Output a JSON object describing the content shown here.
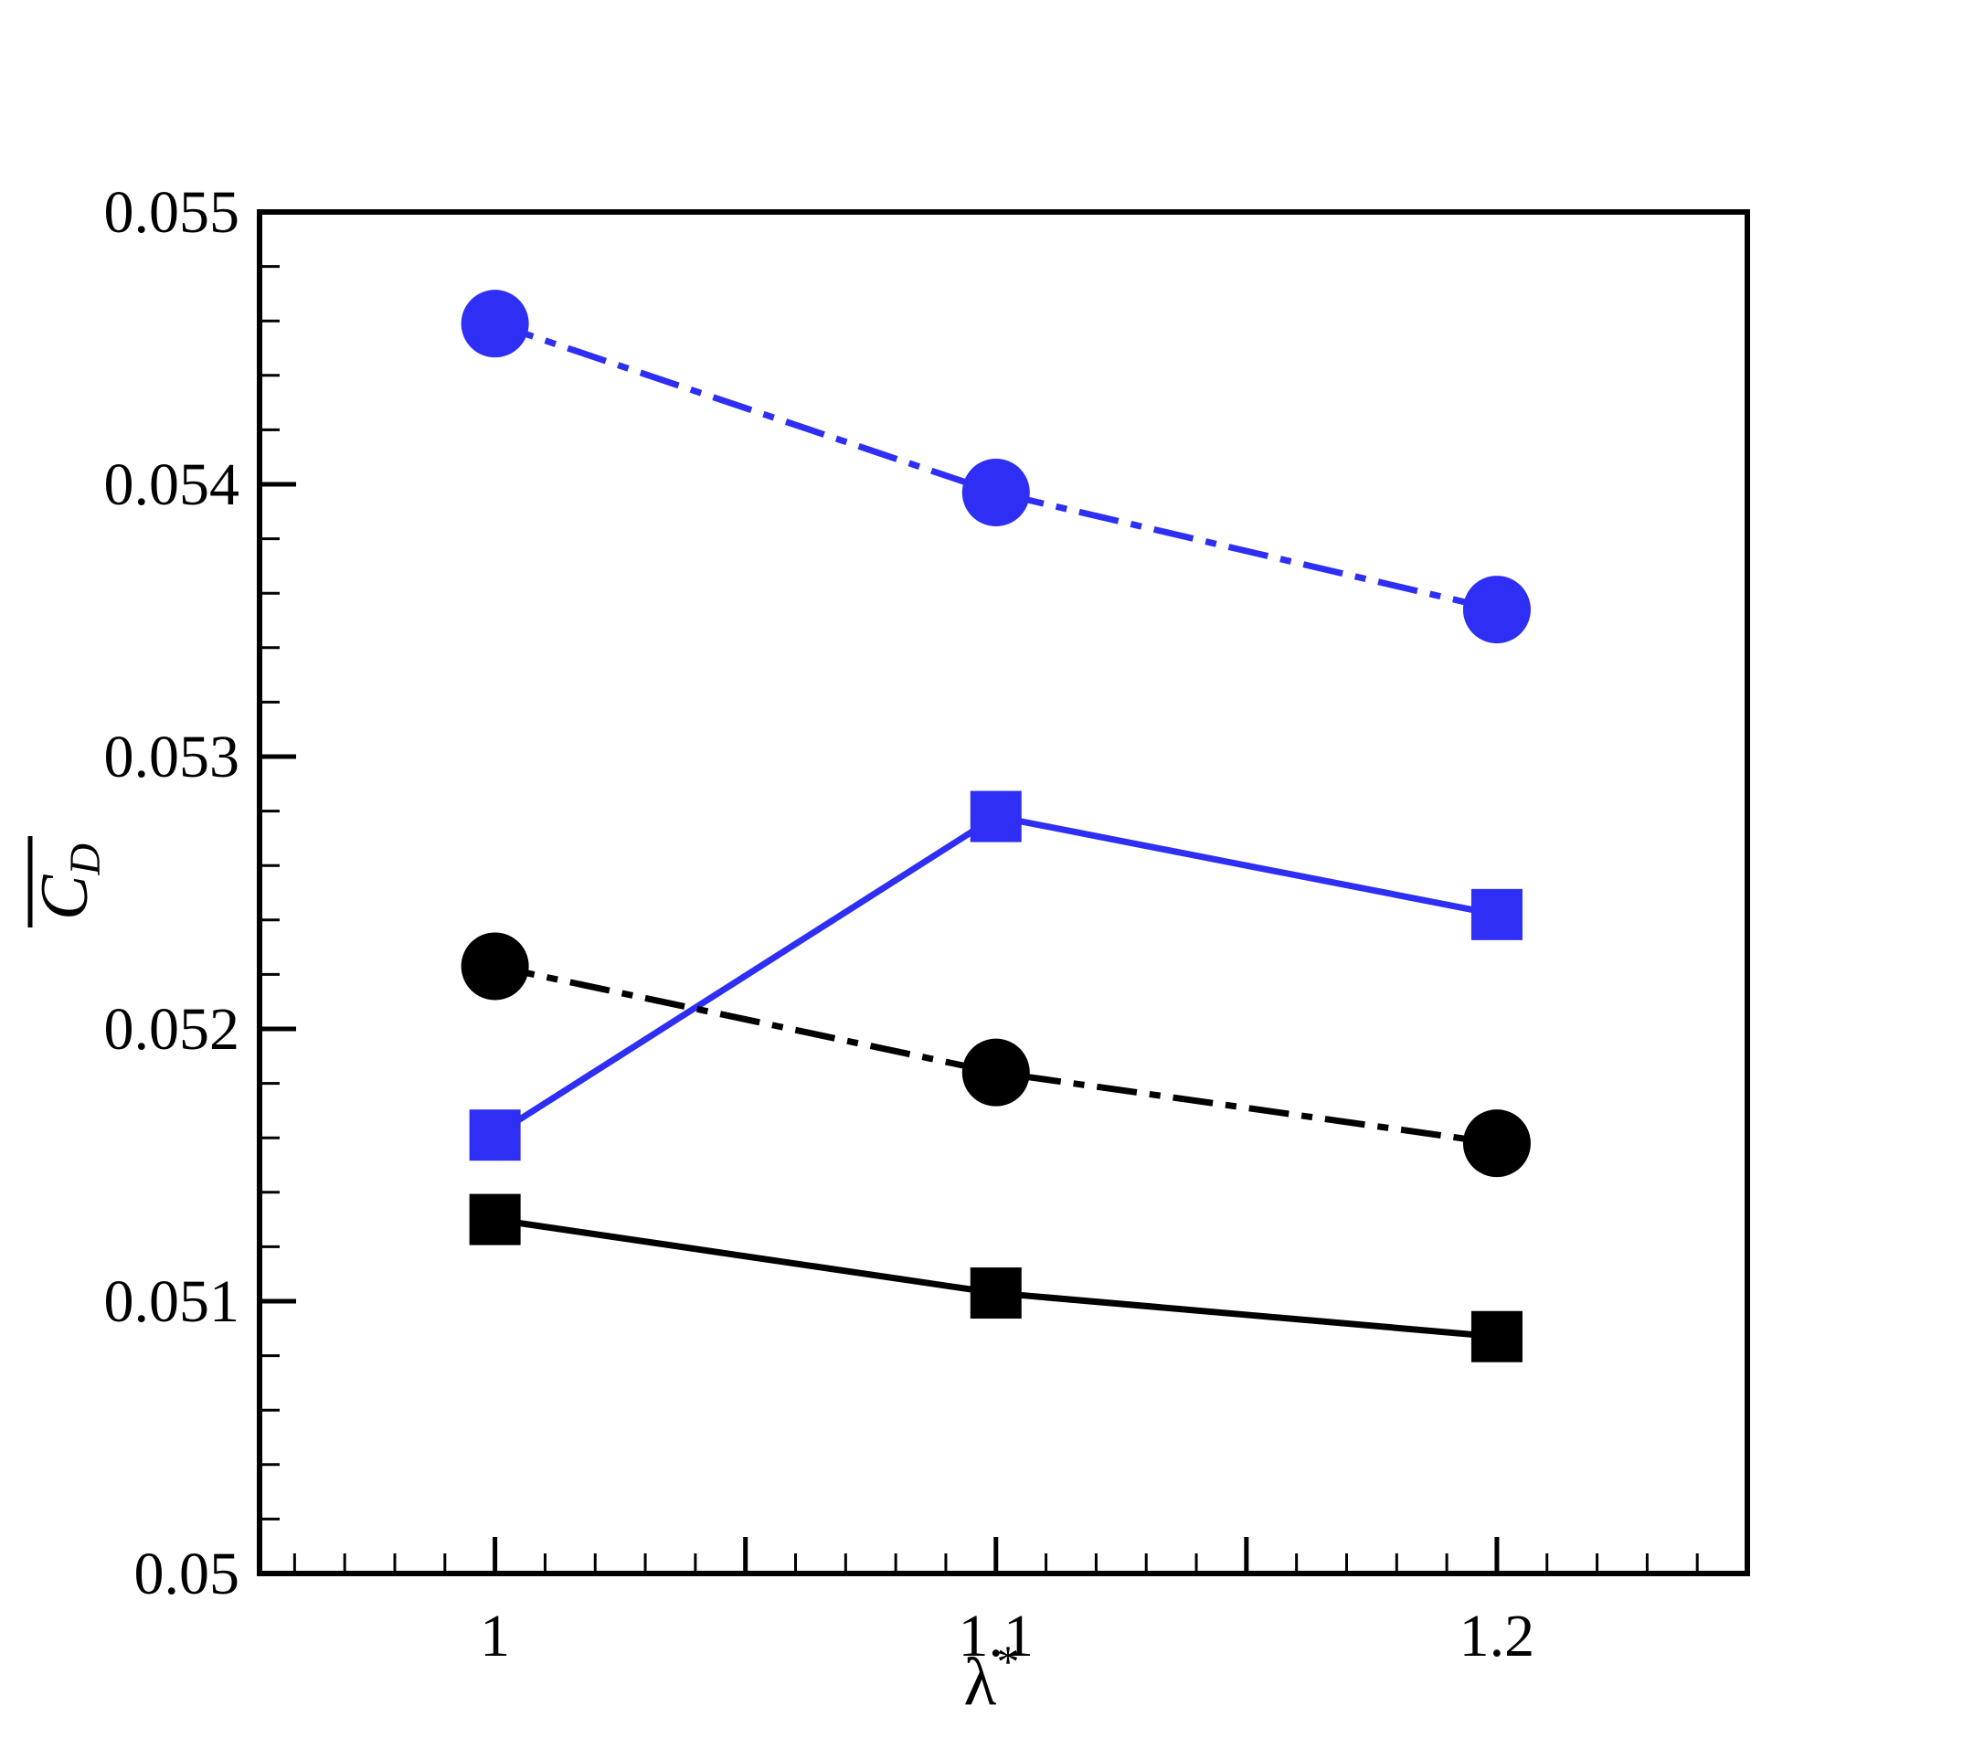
{
  "chart_data": {
    "type": "line",
    "title": "",
    "xlabel": "λ",
    "xlabel_superscript": "*",
    "ylabel": "C",
    "ylabel_subscript": "D",
    "ylabel_overbar": true,
    "xlim": [
      0.953,
      1.25
    ],
    "ylim": [
      0.05,
      0.055
    ],
    "x_ticks": [
      1,
      1.1,
      1.2
    ],
    "x_tick_labels": [
      "1",
      "1.1",
      "1.2"
    ],
    "y_ticks": [
      0.05,
      0.051,
      0.052,
      0.053,
      0.054,
      0.055
    ],
    "y_tick_labels": [
      "0.05",
      "0.051",
      "0.052",
      "0.053",
      "0.054",
      "0.055"
    ],
    "grid": false,
    "legend": "none",
    "x": [
      1,
      1.1,
      1.2
    ],
    "series": [
      {
        "values": [
          0.05459,
          0.05397,
          0.05354
        ],
        "color": "#2e2ef5",
        "marker": "circle",
        "line": "dash-dot"
      },
      {
        "values": [
          0.05161,
          0.05278,
          0.05242
        ],
        "color": "#2e2ef5",
        "marker": "square",
        "line": "solid"
      },
      {
        "values": [
          0.05223,
          0.05184,
          0.05158
        ],
        "color": "#000000",
        "marker": "circle",
        "line": "dash-dot"
      },
      {
        "values": [
          0.0513,
          0.05103,
          0.05087
        ],
        "color": "#000000",
        "marker": "square",
        "line": "solid"
      }
    ]
  }
}
